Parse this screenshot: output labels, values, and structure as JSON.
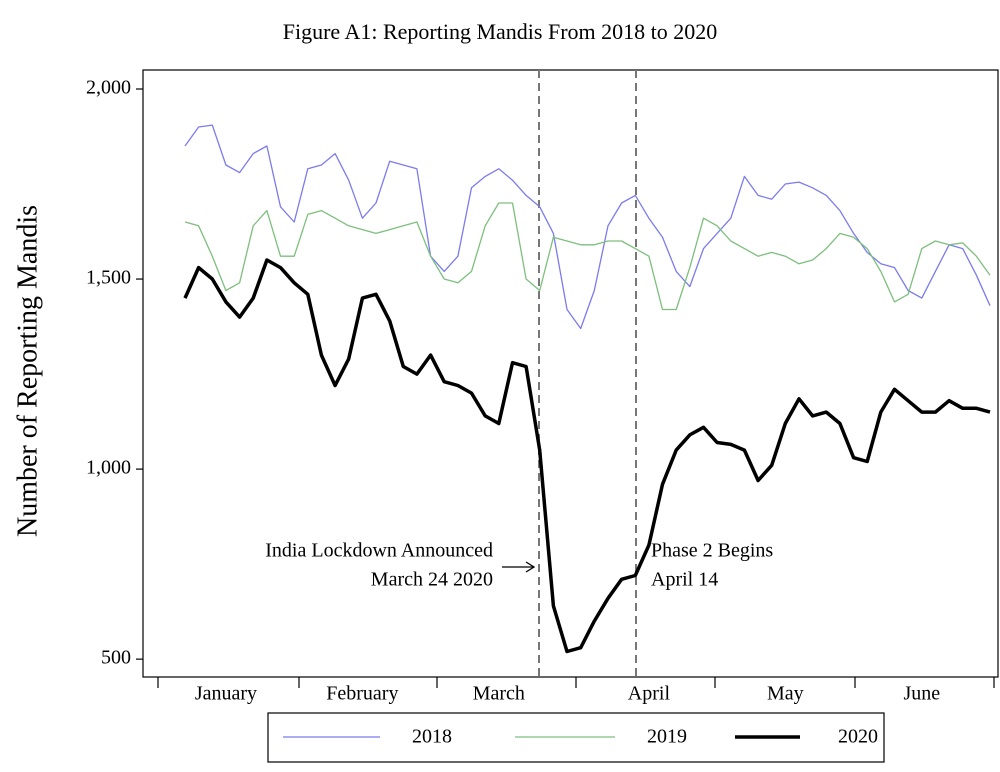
{
  "chart_data": {
    "type": "line",
    "title": "Figure A1: Reporting Mandis From 2018 to 2020",
    "y_label": "Number of Reporting Mandis",
    "categories": [
      null,
      null,
      null,
      "January",
      null,
      null,
      null,
      null,
      null,
      null,
      null,
      null,
      null,
      "February",
      null,
      null,
      null,
      null,
      null,
      null,
      null,
      null,
      null,
      "March",
      null,
      null,
      null,
      null,
      null,
      null,
      null,
      null,
      null,
      null,
      "April",
      null,
      null,
      null,
      null,
      null,
      null,
      null,
      null,
      null,
      "May",
      null,
      null,
      null,
      null,
      null,
      null,
      null,
      null,
      null,
      "June",
      null,
      null,
      null,
      null,
      null
    ],
    "series": [
      {
        "name": "2018",
        "color": "#7b7bee",
        "values": [
          1850,
          1900,
          1905,
          1800,
          1780,
          1830,
          1850,
          1690,
          1650,
          1790,
          1800,
          1830,
          1760,
          1660,
          1700,
          1810,
          1800,
          1790,
          1560,
          1520,
          1560,
          1740,
          1770,
          1790,
          1760,
          1720,
          1690,
          1620,
          1420,
          1370,
          1470,
          1640,
          1700,
          1720,
          1660,
          1610,
          1520,
          1480,
          1580,
          1620,
          1660,
          1770,
          1720,
          1710,
          1750,
          1755,
          1740,
          1720,
          1680,
          1620,
          1570,
          1540,
          1530,
          1470,
          1450,
          1520,
          1590,
          1580,
          1510,
          1430
        ]
      },
      {
        "name": "2019",
        "color": "#7dbf7d",
        "values": [
          1650,
          1640,
          1560,
          1470,
          1490,
          1640,
          1680,
          1560,
          1560,
          1670,
          1680,
          1660,
          1640,
          1630,
          1620,
          1630,
          1640,
          1650,
          1560,
          1500,
          1490,
          1520,
          1640,
          1700,
          1700,
          1500,
          1470,
          1610,
          1600,
          1590,
          1590,
          1600,
          1600,
          1580,
          1560,
          1420,
          1420,
          1530,
          1660,
          1640,
          1600,
          1580,
          1560,
          1570,
          1560,
          1540,
          1550,
          1580,
          1620,
          1610,
          1580,
          1520,
          1440,
          1460,
          1580,
          1600,
          1590,
          1595,
          1560,
          1510
        ]
      },
      {
        "name": "2020",
        "color": "#000000",
        "values": [
          1450,
          1530,
          1500,
          1440,
          1400,
          1450,
          1550,
          1530,
          1490,
          1460,
          1300,
          1220,
          1290,
          1450,
          1460,
          1390,
          1270,
          1250,
          1300,
          1230,
          1220,
          1200,
          1140,
          1120,
          1280,
          1270,
          1050,
          640,
          520,
          530,
          600,
          660,
          710,
          720,
          800,
          960,
          1050,
          1090,
          1110,
          1070,
          1065,
          1050,
          970,
          1010,
          1120,
          1185,
          1140,
          1150,
          1120,
          1030,
          1020,
          1150,
          1210,
          1180,
          1150,
          1150,
          1180,
          1160,
          1160,
          1150
        ]
      }
    ],
    "ylim": [
      453,
      2050
    ],
    "yticks": [
      500,
      {
        "value": 1000,
        "label": "1,000"
      },
      {
        "value": 1500,
        "label": "1,500"
      },
      {
        "value": 2000,
        "label": "2,000"
      }
    ],
    "annotations": [
      "India Lockdown Announced",
      "March 24 2020",
      "Phase 2 Begins",
      "April 14"
    ],
    "legend": "bottom"
  }
}
